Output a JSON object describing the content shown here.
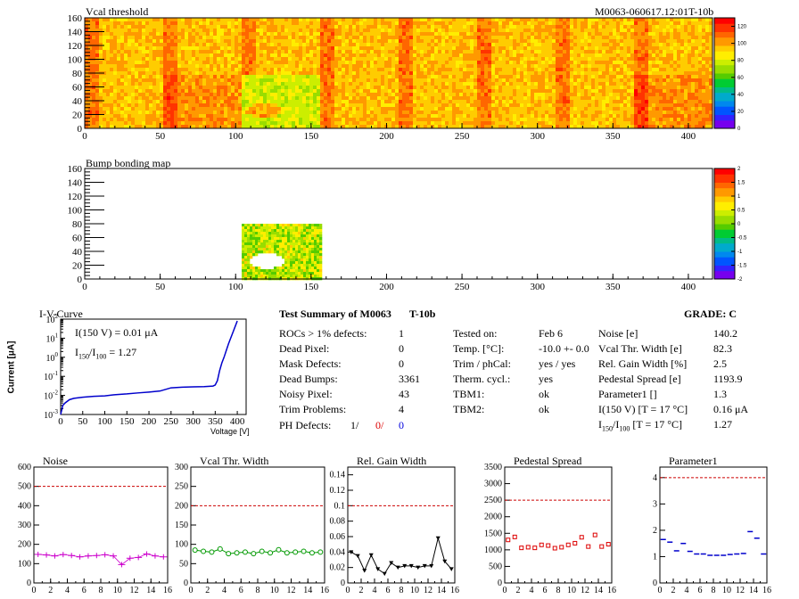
{
  "header": {
    "title": "Vcal threshold",
    "module_id": "M0063-060617.12:01T-10b"
  },
  "colors": {
    "noise": "#cc00cc",
    "vcal": "#009900",
    "gain": "#000000",
    "pedestal": "#dd0000",
    "param": "#0000cc",
    "ref_line": "#cc0000",
    "iv": "#0000cc"
  },
  "chart_data": [
    {
      "type": "heatmap",
      "title": "Vcal threshold",
      "x_ticks": [
        "0",
        "50",
        "100",
        "150",
        "200",
        "250",
        "300",
        "350",
        "400"
      ],
      "y_ticks": [
        "0",
        "20",
        "40",
        "60",
        "80",
        "100",
        "120",
        "140",
        "160"
      ],
      "xlim": [
        0,
        416
      ],
      "ylim": [
        0,
        160
      ],
      "z_ticks": [
        "0",
        "20",
        "40",
        "60",
        "80",
        "100",
        "120"
      ],
      "zlim": [
        0,
        130
      ]
    },
    {
      "type": "heatmap",
      "title": "Bump bonding map",
      "x_ticks": [
        "0",
        "50",
        "100",
        "150",
        "200",
        "250",
        "300",
        "350",
        "400"
      ],
      "y_ticks": [
        "0",
        "20",
        "40",
        "60",
        "80",
        "100",
        "120",
        "140",
        "160"
      ],
      "xlim": [
        0,
        416
      ],
      "ylim": [
        0,
        160
      ],
      "z_ticks": [
        "-2",
        "-1.5",
        "-1",
        "-0.5",
        "0",
        "0.5",
        "1",
        "1.5",
        "2"
      ],
      "zlim": [
        -2,
        2
      ]
    },
    {
      "type": "line",
      "title": "I-V-Curve",
      "xlabel": "Voltage [V]",
      "ylabel": "Current [μA]",
      "x_ticks": [
        "0",
        "50",
        "100",
        "150",
        "200",
        "250",
        "300",
        "350",
        "400"
      ],
      "xlim": [
        0,
        420
      ],
      "ylim": [
        0.001,
        100
      ],
      "log_y": true,
      "annotation_current": "I(150 V) = 0.01 μA",
      "annotation_ratio_label": "I",
      "annotation_ratio_sub1": "150",
      "annotation_ratio_sub2": "100",
      "annotation_ratio_value": " =  1.27",
      "x": [
        0,
        5,
        10,
        20,
        30,
        50,
        75,
        100,
        125,
        150,
        175,
        200,
        225,
        250,
        275,
        300,
        325,
        345,
        350,
        355,
        360,
        365,
        370,
        380,
        390,
        400
      ],
      "y": [
        0.001,
        0.003,
        0.004,
        0.006,
        0.007,
        0.008,
        0.009,
        0.0095,
        0.011,
        0.012,
        0.0135,
        0.015,
        0.017,
        0.025,
        0.027,
        0.028,
        0.029,
        0.031,
        0.035,
        0.06,
        0.2,
        0.5,
        1,
        5,
        20,
        80
      ]
    },
    {
      "type": "line",
      "title": "Noise",
      "x": [
        0,
        1,
        2,
        3,
        4,
        5,
        6,
        7,
        8,
        9,
        10,
        11,
        12,
        13,
        14,
        15
      ],
      "values": [
        148,
        145,
        140,
        147,
        142,
        135,
        140,
        142,
        146,
        140,
        95,
        128,
        132,
        150,
        140,
        135
      ],
      "threshold": 500,
      "ylim": [
        0,
        600
      ],
      "y_ticks": [
        "0",
        "100",
        "200",
        "300",
        "400",
        "500",
        "600"
      ],
      "x_ticks": [
        "0",
        "2",
        "4",
        "6",
        "8",
        "10",
        "12",
        "14",
        "16"
      ],
      "xlim": [
        0,
        16
      ]
    },
    {
      "type": "line",
      "title": "Vcal Thr. Width",
      "x": [
        0,
        1,
        2,
        3,
        4,
        5,
        6,
        7,
        8,
        9,
        10,
        11,
        12,
        13,
        14,
        15
      ],
      "values": [
        85,
        82,
        80,
        88,
        76,
        78,
        80,
        76,
        82,
        78,
        86,
        78,
        80,
        82,
        78,
        80
      ],
      "threshold": 200,
      "ylim": [
        0,
        300
      ],
      "y_ticks": [
        "0",
        "50",
        "100",
        "150",
        "200",
        "250",
        "300"
      ],
      "x_ticks": [
        "0",
        "2",
        "4",
        "6",
        "8",
        "10",
        "12",
        "14",
        "16"
      ],
      "xlim": [
        0,
        16
      ]
    },
    {
      "type": "line",
      "title": "Rel. Gain Width",
      "x": [
        0,
        1,
        2,
        3,
        4,
        5,
        6,
        7,
        8,
        9,
        10,
        11,
        12,
        13,
        14,
        15
      ],
      "values": [
        0.04,
        0.035,
        0.016,
        0.036,
        0.018,
        0.012,
        0.026,
        0.02,
        0.022,
        0.022,
        0.02,
        0.022,
        0.022,
        0.058,
        0.028,
        0.018
      ],
      "threshold": 0.1,
      "ylim": [
        0,
        0.15
      ],
      "y_ticks": [
        "0",
        "0.02",
        "0.04",
        "0.06",
        "0.08",
        "0.1",
        "0.12",
        "0.14"
      ],
      "x_ticks": [
        "0",
        "2",
        "4",
        "6",
        "8",
        "10",
        "12",
        "14",
        "16"
      ],
      "xlim": [
        0,
        16
      ]
    },
    {
      "type": "line",
      "title": "Pedestal Spread",
      "x": [
        0,
        1,
        2,
        3,
        4,
        5,
        6,
        7,
        8,
        9,
        10,
        11,
        12,
        13,
        14,
        15
      ],
      "values": [
        1300,
        1390,
        1060,
        1080,
        1060,
        1150,
        1130,
        1050,
        1080,
        1150,
        1200,
        1380,
        1100,
        1450,
        1100,
        1170
      ],
      "threshold": 2500,
      "ylim": [
        0,
        3500
      ],
      "y_ticks": [
        "0",
        "500",
        "1000",
        "1500",
        "2000",
        "2500",
        "3000",
        "3500"
      ],
      "x_ticks": [
        "0",
        "2",
        "4",
        "6",
        "8",
        "10",
        "12",
        "14",
        "16"
      ],
      "xlim": [
        0,
        16
      ]
    },
    {
      "type": "scatter",
      "title": "Parameter1",
      "x": [
        0,
        1,
        2,
        3,
        4,
        5,
        6,
        7,
        8,
        9,
        10,
        11,
        12,
        13,
        14,
        15
      ],
      "values": [
        1.65,
        1.55,
        1.22,
        1.5,
        1.2,
        1.1,
        1.1,
        1.05,
        1.05,
        1.05,
        1.08,
        1.1,
        1.12,
        1.95,
        1.7,
        1.1
      ],
      "threshold": 4,
      "ylim": [
        0,
        4.4
      ],
      "y_ticks": [
        "0",
        "1",
        "2",
        "3",
        "4"
      ],
      "x_ticks": [
        "0",
        "2",
        "4",
        "6",
        "8",
        "10",
        "12",
        "14",
        "16"
      ],
      "xlim": [
        0,
        16
      ]
    }
  ],
  "summary": {
    "title": "Test Summary of M0063",
    "tag": "T-10b",
    "grade_label": "GRADE:",
    "grade": "C",
    "left": [
      {
        "label": "ROCs > 1% defects:",
        "value": "1"
      },
      {
        "label": "Dead Pixel:",
        "value": "0"
      },
      {
        "label": "Mask Defects:",
        "value": "0"
      },
      {
        "label": "Dead Bumps:",
        "value": "3361"
      },
      {
        "label": "Noisy Pixel:",
        "value": "43"
      },
      {
        "label": "Trim Problems:",
        "value": "4"
      }
    ],
    "ph_label": "PH Defects:",
    "ph_values": [
      "1/",
      "0/",
      "0"
    ],
    "mid": [
      {
        "label": "Tested on:",
        "value": "Feb 6"
      },
      {
        "label": "Temp. [°C]:",
        "value": "-10.0 +- 0.0"
      },
      {
        "label": "Trim / phCal:",
        "value": "yes / yes"
      },
      {
        "label": "Therm. cycl.:",
        "value": "yes"
      },
      {
        "label": "TBM1:",
        "value": "ok"
      },
      {
        "label": "TBM2:",
        "value": "ok"
      }
    ],
    "right": [
      {
        "label": "Noise [e]",
        "value": "140.2"
      },
      {
        "label": "Vcal Thr. Width [e]",
        "value": "82.3"
      },
      {
        "label": "Rel. Gain Width [%]",
        "value": "2.5"
      },
      {
        "label": "Pedestal Spread [e]",
        "value": "1193.9"
      },
      {
        "label": "Parameter1 []",
        "value": "1.3"
      },
      {
        "label": "I(150 V)  [T = 17 °C]",
        "value": "0.16 μA"
      }
    ],
    "ratio_label": "I",
    "ratio_sub1": "150",
    "ratio_sub2": "100",
    "ratio_cond": "[T = 17 °C]",
    "ratio_value": "1.27"
  }
}
